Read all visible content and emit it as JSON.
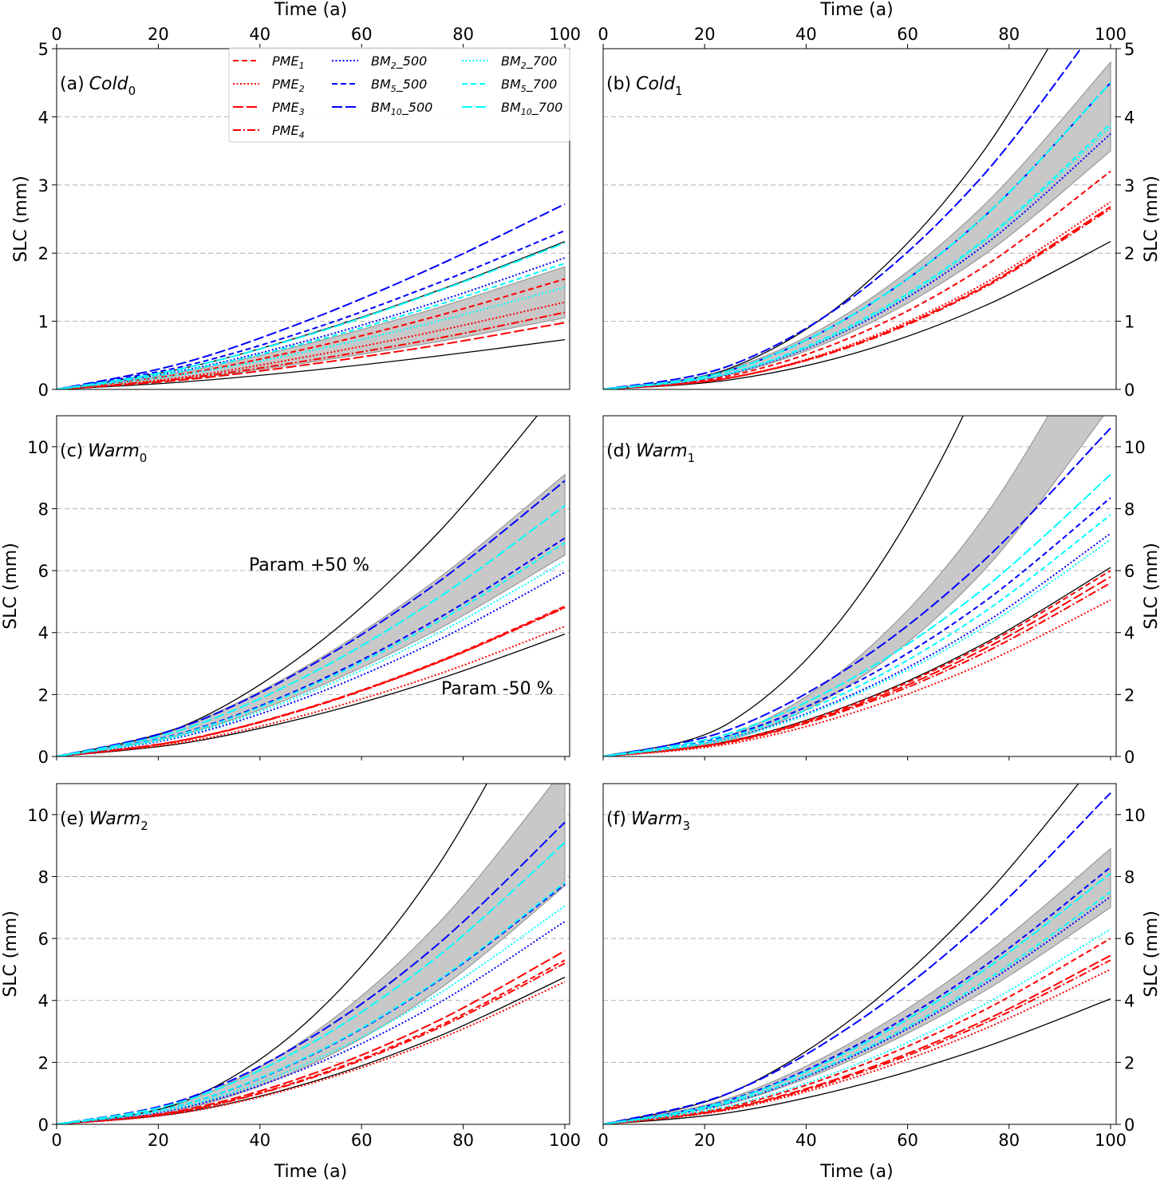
{
  "chart_data": {
    "type": "line",
    "x_label": "Time (a)",
    "y_label": "SLC (mm)",
    "x": [
      0,
      25,
      50,
      75,
      100
    ],
    "xlim": [
      0,
      101
    ],
    "xticks": [
      0,
      20,
      40,
      60,
      80,
      100
    ],
    "grid": "horizontal dashed at y ticks",
    "legend_placement": "top (panel a)",
    "colors": {
      "PME": "#ff0000",
      "BM_500": "#0000ff",
      "BM_700": "#00ffff",
      "bounds": "#000000",
      "band": "#c8c8c8"
    },
    "legend": [
      {
        "key": "PME1",
        "base": "PME",
        "sub": "1",
        "suffix": "",
        "color": "#ff0000",
        "style": "dashed"
      },
      {
        "key": "PME2",
        "base": "PME",
        "sub": "2",
        "suffix": "",
        "color": "#ff0000",
        "style": "dotted"
      },
      {
        "key": "PME3",
        "base": "PME",
        "sub": "3",
        "suffix": "",
        "color": "#ff0000",
        "style": "long-dashed"
      },
      {
        "key": "PME4",
        "base": "PME",
        "sub": "4",
        "suffix": "",
        "color": "#ff0000",
        "style": "dash-dot"
      },
      {
        "key": "BM2_500",
        "base": "BM",
        "sub": "2",
        "suffix": "_500",
        "color": "#0000ff",
        "style": "dotted"
      },
      {
        "key": "BM5_500",
        "base": "BM",
        "sub": "5",
        "suffix": "_500",
        "color": "#0000ff",
        "style": "dashed"
      },
      {
        "key": "BM10_500",
        "base": "BM",
        "sub": "10",
        "suffix": "_500",
        "color": "#0000ff",
        "style": "long-dashed"
      },
      {
        "key": "BM2_700",
        "base": "BM",
        "sub": "2",
        "suffix": "_700",
        "color": "#00ffff",
        "style": "dotted"
      },
      {
        "key": "BM5_700",
        "base": "BM",
        "sub": "5",
        "suffix": "_700",
        "color": "#00ffff",
        "style": "dashed"
      },
      {
        "key": "BM10_700",
        "base": "BM",
        "sub": "10",
        "suffix": "_700",
        "color": "#00ffff",
        "style": "long-dashed"
      }
    ],
    "panels": [
      {
        "letter": "(a)",
        "name": "Cold",
        "sub": "0",
        "ylim": [
          0,
          5
        ],
        "yticks": [
          0,
          1,
          2,
          3,
          4,
          5
        ],
        "series": {
          "PME1": [
            0,
            0.23,
            0.61,
            1.08,
            1.62
          ],
          "PME2": [
            0,
            0.18,
            0.49,
            0.86,
            1.28
          ],
          "PME3": [
            0,
            0.14,
            0.37,
            0.65,
            0.98
          ],
          "PME4": [
            0,
            0.16,
            0.43,
            0.75,
            1.13
          ],
          "BM2_500": [
            0,
            0.28,
            0.73,
            1.29,
            1.93
          ],
          "BM5_500": [
            0,
            0.34,
            0.88,
            1.56,
            2.33
          ],
          "BM10_500": [
            0,
            0.39,
            1.03,
            1.82,
            2.72
          ],
          "BM2_700": [
            0,
            0.22,
            0.57,
            1.0,
            1.5
          ],
          "BM5_700": [
            0,
            0.27,
            0.7,
            1.24,
            1.85
          ],
          "BM10_700": [
            0,
            0.31,
            0.81,
            1.44,
            2.15
          ]
        },
        "param_plus50": [
          0,
          0.31,
          0.82,
          1.45,
          2.17
        ],
        "param_minus50": [
          0,
          0.11,
          0.28,
          0.49,
          0.73
        ],
        "band_lower": [
          0,
          0.15,
          0.4,
          0.7,
          1.05
        ],
        "band_upper": [
          0,
          0.26,
          0.68,
          1.2,
          1.8
        ]
      },
      {
        "letter": "(b)",
        "name": "Cold",
        "sub": "1",
        "ylim": [
          0,
          5
        ],
        "yticks": [
          0,
          1,
          2,
          3,
          4,
          5
        ],
        "series": {
          "PME1": [
            0,
            0.2,
            0.8,
            1.8,
            3.2
          ],
          "PME2": [
            0,
            0.17,
            0.69,
            1.55,
            2.75
          ],
          "PME3": [
            0,
            0.17,
            0.67,
            1.51,
            2.68
          ],
          "PME4": [
            0,
            0.17,
            0.66,
            1.49,
            2.65
          ],
          "BM2_500": [
            0,
            0.23,
            0.94,
            2.11,
            3.75
          ],
          "BM5_500": [
            0,
            0.28,
            1.13,
            2.53,
            4.5
          ],
          "BM10_500": [
            0,
            0.35,
            1.4,
            3.15,
            5.6
          ],
          "BM2_700": [
            0,
            0.24,
            0.96,
            2.17,
            3.85
          ],
          "BM5_700": [
            0,
            0.24,
            0.98,
            2.19,
            3.9
          ],
          "BM10_700": [
            0,
            0.28,
            1.13,
            2.53,
            4.5
          ]
        },
        "param_plus50": [
          0,
          0.31,
          1.44,
          3.5,
          6.6
        ],
        "param_minus50": [
          0,
          0.14,
          0.54,
          1.22,
          2.17
        ],
        "band_lower": [
          0,
          0.22,
          0.88,
          1.97,
          3.5
        ],
        "band_upper": [
          0,
          0.3,
          1.2,
          2.7,
          4.8
        ]
      },
      {
        "letter": "(c)",
        "name": "Warm",
        "sub": "0",
        "ylim": [
          0,
          11
        ],
        "yticks": [
          0,
          2,
          4,
          6,
          8,
          10
        ],
        "series": {
          "PME1": [
            0,
            0.53,
            1.6,
            3.06,
            4.85
          ],
          "PME2": [
            0,
            0.46,
            1.39,
            2.65,
            4.2
          ],
          "PME3": [
            0,
            0.53,
            1.59,
            3.04,
            4.82
          ],
          "PME4": [
            0,
            0.52,
            1.58,
            3.03,
            4.8
          ],
          "BM2_500": [
            0,
            0.65,
            1.96,
            3.75,
            5.95
          ],
          "BM5_500": [
            0,
            0.77,
            2.33,
            4.45,
            7.05
          ],
          "BM10_500": [
            0,
            0.97,
            2.94,
            5.62,
            8.9
          ],
          "BM2_700": [
            0,
            0.69,
            2.08,
            3.98,
            6.3
          ],
          "BM5_700": [
            0,
            0.75,
            2.28,
            4.35,
            6.9
          ],
          "BM10_700": [
            0,
            0.88,
            2.67,
            5.11,
            8.1
          ]
        },
        "param_plus50": [
          0,
          0.99,
          3.47,
          7.21,
          12.1
        ],
        "param_minus50": [
          0,
          0.43,
          1.3,
          2.49,
          3.95
        ],
        "band_lower": [
          0,
          0.71,
          2.15,
          4.1,
          6.5
        ],
        "band_upper": [
          0,
          0.99,
          3.0,
          5.74,
          9.1
        ],
        "annotations": [
          "Param +50 %",
          "Param -50 %"
        ]
      },
      {
        "letter": "(d)",
        "name": "Warm",
        "sub": "1",
        "ylim": [
          0,
          11
        ],
        "yticks": [
          0,
          2,
          4,
          6,
          8,
          10
        ],
        "series": {
          "PME1": [
            0,
            0.49,
            1.72,
            3.58,
            6.0
          ],
          "PME2": [
            0,
            0.41,
            1.45,
            3.01,
            5.05
          ],
          "PME3": [
            0,
            0.48,
            1.66,
            3.46,
            5.8
          ],
          "PME4": [
            0,
            0.46,
            1.61,
            3.34,
            5.6
          ],
          "BM2_500": [
            0,
            0.59,
            2.07,
            4.29,
            7.2
          ],
          "BM5_500": [
            0,
            0.68,
            2.4,
            4.98,
            8.35
          ],
          "BM10_500": [
            0,
            0.87,
            3.04,
            6.32,
            10.6
          ],
          "BM2_700": [
            0,
            0.57,
            2.01,
            4.17,
            7.0
          ],
          "BM5_700": [
            0,
            0.64,
            2.24,
            4.65,
            7.8
          ],
          "BM10_700": [
            0,
            0.75,
            2.61,
            5.42,
            9.1
          ]
        },
        "param_plus50": [
          0,
          1.1,
          5.1,
          12.43,
          23.4
        ],
        "param_minus50": [
          0,
          0.5,
          1.75,
          3.64,
          6.1
        ],
        "band_lower": [
          0,
          0.53,
          2.46,
          6.0,
          11.3
        ],
        "band_upper": [
          0,
          0.68,
          3.16,
          7.7,
          14.5
        ]
      },
      {
        "letter": "(e)",
        "name": "Warm",
        "sub": "2",
        "ylim": [
          0,
          11
        ],
        "yticks": [
          0,
          2,
          4,
          6,
          8,
          10
        ],
        "series": {
          "PME1": [
            0,
            0.43,
            1.52,
            3.16,
            5.3
          ],
          "PME2": [
            0,
            0.38,
            1.32,
            2.74,
            4.6
          ],
          "PME3": [
            0,
            0.46,
            1.61,
            3.34,
            5.6
          ],
          "PME4": [
            0,
            0.43,
            1.49,
            3.1,
            5.2
          ],
          "BM2_500": [
            0,
            0.54,
            1.88,
            3.9,
            6.55
          ],
          "BM5_500": [
            0,
            0.64,
            2.22,
            4.62,
            7.75
          ],
          "BM10_500": [
            0,
            0.8,
            2.8,
            5.81,
            9.75
          ],
          "BM2_700": [
            0,
            0.58,
            2.02,
            4.2,
            7.05
          ],
          "BM5_700": [
            0,
            0.64,
            2.24,
            4.65,
            7.8
          ],
          "BM10_700": [
            0,
            0.75,
            2.61,
            5.42,
            9.1
          ]
        },
        "param_plus50": [
          0,
          0.74,
          3.42,
          8.34,
          15.7
        ],
        "param_minus50": [
          0,
          0.39,
          1.36,
          2.83,
          4.75
        ],
        "band_lower": [
          0,
          0.48,
          1.93,
          4.33,
          7.7
        ],
        "band_upper": [
          0,
          0.72,
          2.88,
          6.47,
          11.5
        ]
      },
      {
        "letter": "(f)",
        "name": "Warm",
        "sub": "3",
        "ylim": [
          0,
          11
        ],
        "yticks": [
          0,
          2,
          4,
          6,
          8,
          10
        ],
        "series": {
          "PME1": [
            0,
            0.57,
            1.85,
            3.68,
            6.0
          ],
          "PME2": [
            0,
            0.48,
            1.54,
            3.07,
            5.0
          ],
          "PME3": [
            0,
            0.52,
            1.68,
            3.34,
            5.45
          ],
          "PME4": [
            0,
            0.5,
            1.63,
            3.25,
            5.3
          ],
          "BM2_500": [
            0,
            0.7,
            2.26,
            4.51,
            7.35
          ],
          "BM5_500": [
            0,
            0.79,
            2.56,
            5.09,
            8.3
          ],
          "BM10_500": [
            0,
            1.02,
            3.3,
            6.56,
            10.7
          ],
          "BM2_700": [
            0,
            0.6,
            1.94,
            3.86,
            6.3
          ],
          "BM5_700": [
            0,
            0.71,
            2.31,
            4.6,
            7.5
          ],
          "BM10_700": [
            0,
            0.77,
            2.49,
            4.97,
            8.1
          ]
        },
        "param_plus50": [
          0,
          1.01,
          3.53,
          7.33,
          12.3
        ],
        "param_minus50": [
          0,
          0.38,
          1.25,
          2.48,
          4.05
        ],
        "band_lower": [
          0,
          0.67,
          2.16,
          4.29,
          7.0
        ],
        "band_upper": [
          0,
          0.85,
          2.74,
          5.46,
          8.9
        ]
      }
    ]
  }
}
